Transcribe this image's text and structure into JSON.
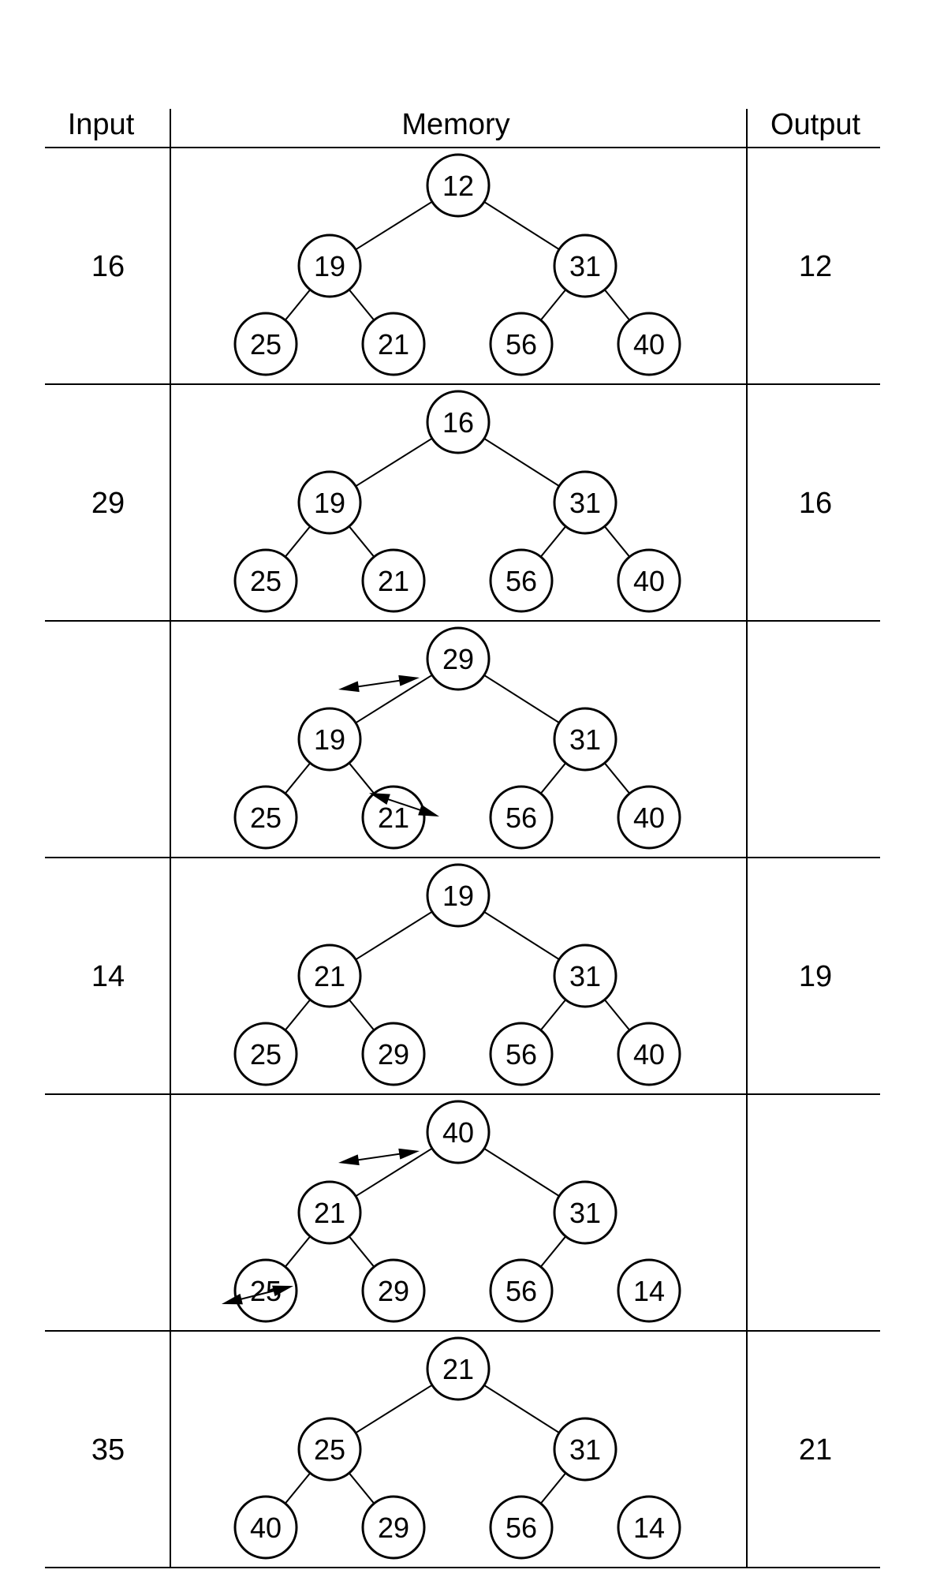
{
  "headers": {
    "input": "Input",
    "memory": "Memory",
    "output": "Output"
  },
  "rows": [
    {
      "input": "16",
      "output": "12",
      "nodes": [
        "12",
        "19",
        "31",
        "25",
        "21",
        "56",
        "40"
      ],
      "edges": [
        [
          0,
          1
        ],
        [
          0,
          2
        ],
        [
          1,
          3
        ],
        [
          1,
          4
        ],
        [
          2,
          5
        ],
        [
          2,
          6
        ]
      ],
      "swaps": []
    },
    {
      "input": "29",
      "output": "16",
      "nodes": [
        "16",
        "19",
        "31",
        "25",
        "21",
        "56",
        "40"
      ],
      "edges": [
        [
          0,
          1
        ],
        [
          0,
          2
        ],
        [
          1,
          3
        ],
        [
          1,
          4
        ],
        [
          2,
          5
        ],
        [
          2,
          6
        ]
      ],
      "swaps": []
    },
    {
      "input": "",
      "output": "",
      "nodes": [
        "29",
        "19",
        "31",
        "25",
        "21",
        "56",
        "40"
      ],
      "edges": [
        [
          0,
          1
        ],
        [
          0,
          2
        ],
        [
          1,
          3
        ],
        [
          1,
          4
        ],
        [
          2,
          5
        ],
        [
          2,
          6
        ]
      ],
      "swaps": [
        "root-left",
        "left-right"
      ]
    },
    {
      "input": "14",
      "output": "19",
      "nodes": [
        "19",
        "21",
        "31",
        "25",
        "29",
        "56",
        "40"
      ],
      "edges": [
        [
          0,
          1
        ],
        [
          0,
          2
        ],
        [
          1,
          3
        ],
        [
          1,
          4
        ],
        [
          2,
          5
        ],
        [
          2,
          6
        ]
      ],
      "swaps": []
    },
    {
      "input": "",
      "output": "",
      "nodes": [
        "40",
        "21",
        "31",
        "25",
        "29",
        "56",
        "14"
      ],
      "edges": [
        [
          0,
          1
        ],
        [
          0,
          2
        ],
        [
          1,
          3
        ],
        [
          1,
          4
        ],
        [
          2,
          5
        ]
      ],
      "swaps": [
        "root-left",
        "left-leftleaf"
      ]
    },
    {
      "input": "35",
      "output": "21",
      "nodes": [
        "21",
        "25",
        "31",
        "40",
        "29",
        "56",
        "14"
      ],
      "edges": [
        [
          0,
          1
        ],
        [
          0,
          2
        ],
        [
          1,
          3
        ],
        [
          1,
          4
        ],
        [
          2,
          5
        ]
      ],
      "swaps": []
    }
  ]
}
